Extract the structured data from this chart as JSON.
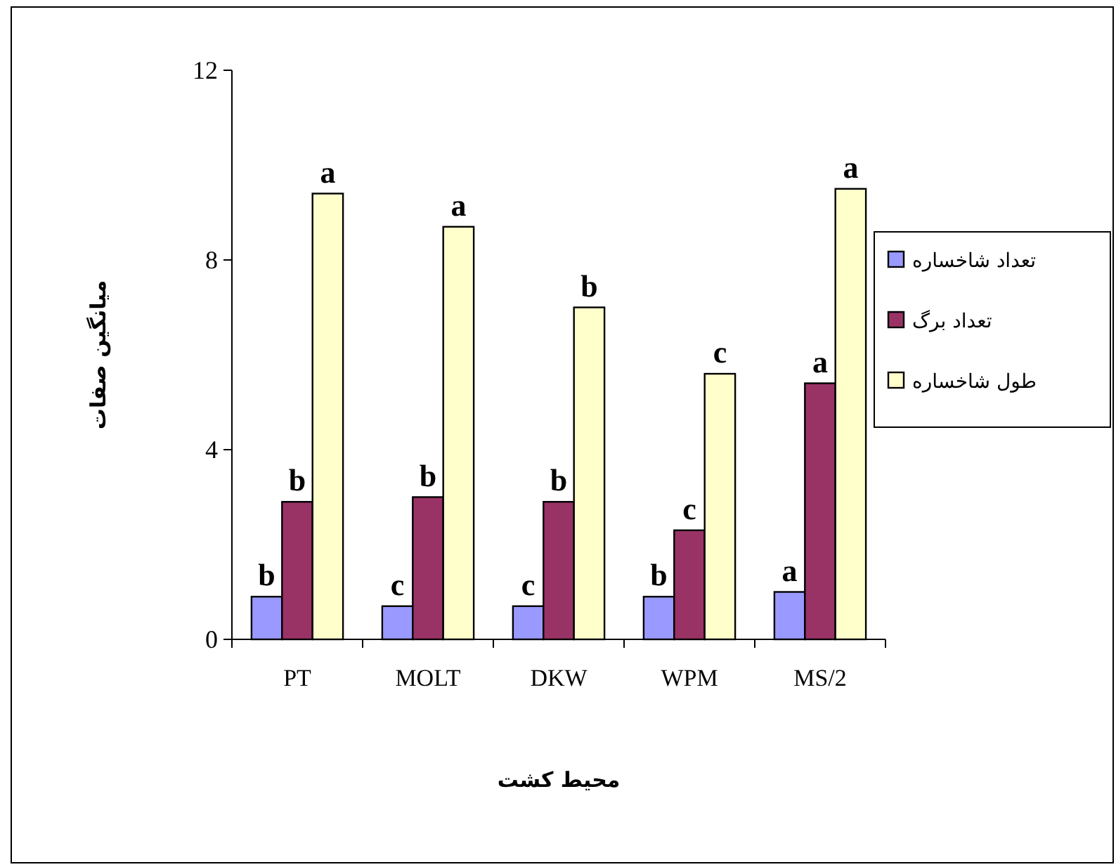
{
  "chart_data": {
    "type": "bar",
    "xlabel": "محیط کشت",
    "ylabel": "میانگین صفات",
    "categories": [
      "PT",
      "MOLT",
      "DKW",
      "WPM",
      "MS/2"
    ],
    "series": [
      {
        "name": "تعداد شاخساره",
        "color": "#9999ff",
        "values": [
          0.9,
          0.7,
          0.7,
          0.9,
          1.0
        ],
        "value_labels": [
          "b",
          "c",
          "c",
          "b",
          "a"
        ]
      },
      {
        "name": "تعداد برگ",
        "color": "#993366",
        "values": [
          2.9,
          3.0,
          2.9,
          2.3,
          5.4
        ],
        "value_labels": [
          "b",
          "b",
          "b",
          "c",
          "a"
        ]
      },
      {
        "name": "طول شاخساره",
        "color": "#ffffcc",
        "values": [
          9.4,
          8.7,
          7.0,
          5.6,
          9.5
        ],
        "value_labels": [
          "a",
          "a",
          "b",
          "c",
          "a"
        ]
      }
    ],
    "ylim": [
      0,
      12
    ],
    "yticks": [
      0,
      4,
      8,
      12
    ],
    "grid": false,
    "legend": "right"
  }
}
